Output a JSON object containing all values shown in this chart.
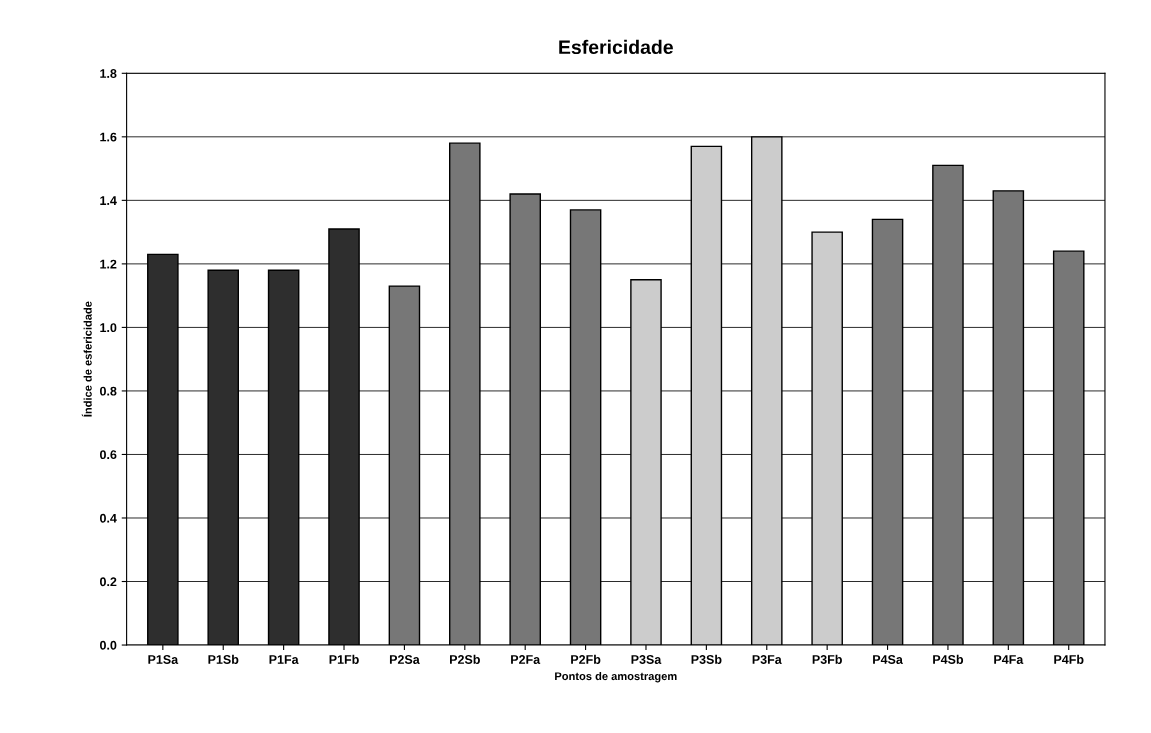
{
  "chart_data": {
    "type": "bar",
    "title": "Esfericidade",
    "xlabel": "Pontos de amostragem",
    "ylabel": "Índice de esfericidade",
    "categories": [
      "P1Sa",
      "P1Sb",
      "P1Fa",
      "P1Fb",
      "P2Sa",
      "P2Sb",
      "P2Fa",
      "P2Fb",
      "P3Sa",
      "P3Sb",
      "P3Fa",
      "P3Fb",
      "P4Sa",
      "P4Sb",
      "P4Fa",
      "P4Fb"
    ],
    "values": [
      1.23,
      1.18,
      1.18,
      1.31,
      1.13,
      1.58,
      1.42,
      1.37,
      1.15,
      1.57,
      1.6,
      1.3,
      1.34,
      1.51,
      1.43,
      1.24
    ],
    "colors": [
      "#2e2e2e",
      "#2e2e2e",
      "#2e2e2e",
      "#2e2e2e",
      "#777777",
      "#777777",
      "#777777",
      "#777777",
      "#cccccc",
      "#cccccc",
      "#cccccc",
      "#cccccc",
      "#777777",
      "#777777",
      "#777777",
      "#777777"
    ],
    "ylim": [
      0,
      1.8
    ],
    "yticks": [
      {
        "value": 0,
        "label": "0.0"
      },
      {
        "value": 0.2,
        "label": "0.2"
      },
      {
        "value": 0.4,
        "label": "0.4"
      },
      {
        "value": 0.6,
        "label": "0.6"
      },
      {
        "value": 0.8,
        "label": "0.8"
      },
      {
        "value": 1.0,
        "label": "1.0"
      },
      {
        "value": 1.2,
        "label": "1.2"
      },
      {
        "value": 1.4,
        "label": "1.4"
      },
      {
        "value": 1.6,
        "label": "1.6"
      },
      {
        "value": 1.8,
        "label": "1.8"
      }
    ],
    "grid": "y"
  }
}
